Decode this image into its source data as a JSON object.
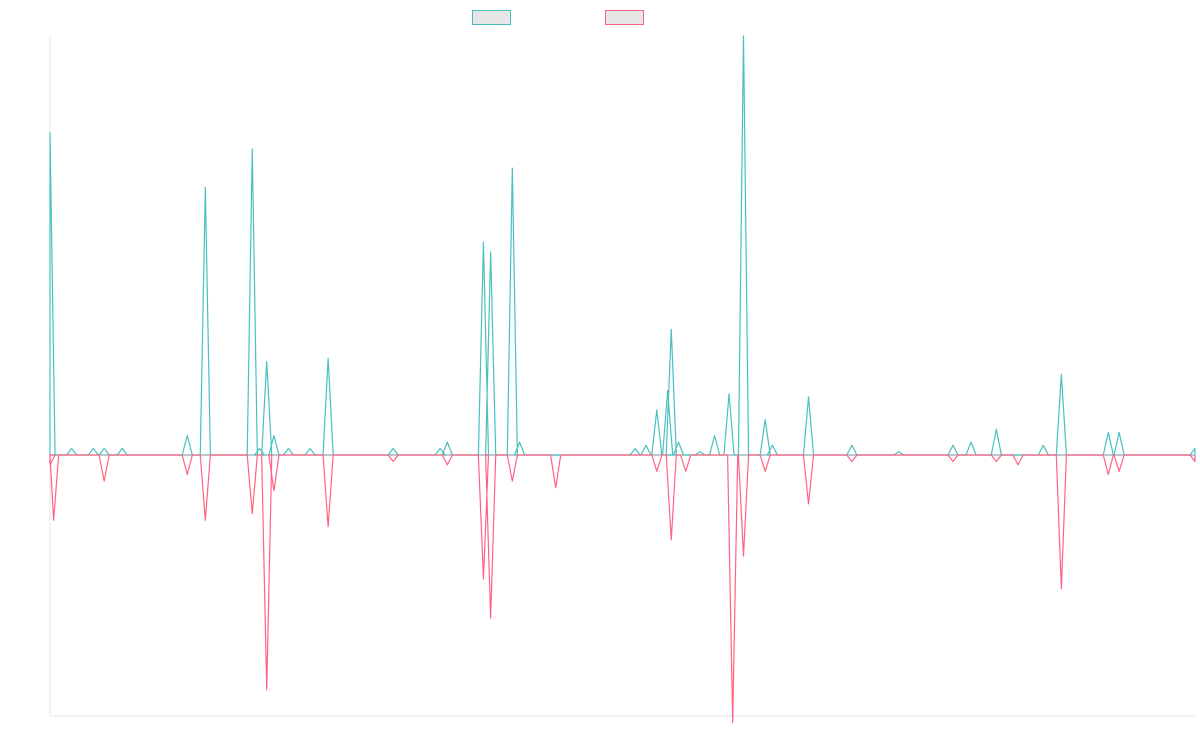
{
  "chart_data": {
    "type": "line",
    "title": "",
    "xlabel": "",
    "ylabel": "",
    "grid": false,
    "legend_position": "top-center",
    "ylim": [
      -0.8,
      1.3
    ],
    "colors": {
      "series_a": "#4bc0c0",
      "series_b": "#ff6384",
      "axis": "#e5e5e5",
      "legend_fill": "#e6e6e6"
    },
    "series": [
      {
        "key": "series_a",
        "points": [
          [
            0,
            1.0
          ],
          [
            3,
            0
          ],
          [
            6,
            0.02
          ],
          [
            12,
            0.02
          ],
          [
            15,
            0.02
          ],
          [
            20,
            0.02
          ],
          [
            38,
            0.06
          ],
          [
            43,
            0.83
          ],
          [
            56,
            0.95
          ],
          [
            58,
            0.02
          ],
          [
            60,
            0.29
          ],
          [
            62,
            0.06
          ],
          [
            66,
            0.02
          ],
          [
            72,
            0.02
          ],
          [
            77,
            0.3
          ],
          [
            95,
            0.02
          ],
          [
            108,
            0.02
          ],
          [
            110,
            0.04
          ],
          [
            120,
            0.66
          ],
          [
            122,
            0.63
          ],
          [
            128,
            0.89
          ],
          [
            130,
            0.04
          ],
          [
            162,
            0.02
          ],
          [
            165,
            0.03
          ],
          [
            168,
            0.14
          ],
          [
            171,
            0.2
          ],
          [
            172,
            0.39
          ],
          [
            174,
            0.04
          ],
          [
            180,
            0.01
          ],
          [
            184,
            0.06
          ],
          [
            188,
            0.19
          ],
          [
            192,
            1.3
          ],
          [
            198,
            0.11
          ],
          [
            200,
            0.03
          ],
          [
            210,
            0.18
          ],
          [
            222,
            0.03
          ],
          [
            235,
            0.01
          ],
          [
            250,
            0.03
          ],
          [
            255,
            0.04
          ],
          [
            262,
            0.08
          ],
          [
            275,
            0.03
          ],
          [
            280,
            0.25
          ],
          [
            293,
            0.07
          ],
          [
            296,
            0.07
          ],
          [
            317,
            0.02
          ]
        ]
      },
      {
        "key": "series_b",
        "points": [
          [
            0,
            -0.03
          ],
          [
            1,
            -0.2
          ],
          [
            15,
            -0.08
          ],
          [
            38,
            -0.06
          ],
          [
            43,
            -0.2
          ],
          [
            56,
            -0.18
          ],
          [
            60,
            -0.72
          ],
          [
            62,
            -0.11
          ],
          [
            77,
            -0.22
          ],
          [
            95,
            -0.02
          ],
          [
            110,
            -0.03
          ],
          [
            120,
            -0.38
          ],
          [
            122,
            -0.5
          ],
          [
            128,
            -0.08
          ],
          [
            140,
            -0.1
          ],
          [
            168,
            -0.05
          ],
          [
            172,
            -0.26
          ],
          [
            176,
            -0.05
          ],
          [
            189,
            -0.82
          ],
          [
            192,
            -0.31
          ],
          [
            198,
            -0.05
          ],
          [
            210,
            -0.15
          ],
          [
            222,
            -0.02
          ],
          [
            250,
            -0.02
          ],
          [
            262,
            -0.02
          ],
          [
            268,
            -0.03
          ],
          [
            280,
            -0.41
          ],
          [
            293,
            -0.06
          ],
          [
            296,
            -0.05
          ],
          [
            317,
            -0.02
          ]
        ]
      }
    ]
  }
}
